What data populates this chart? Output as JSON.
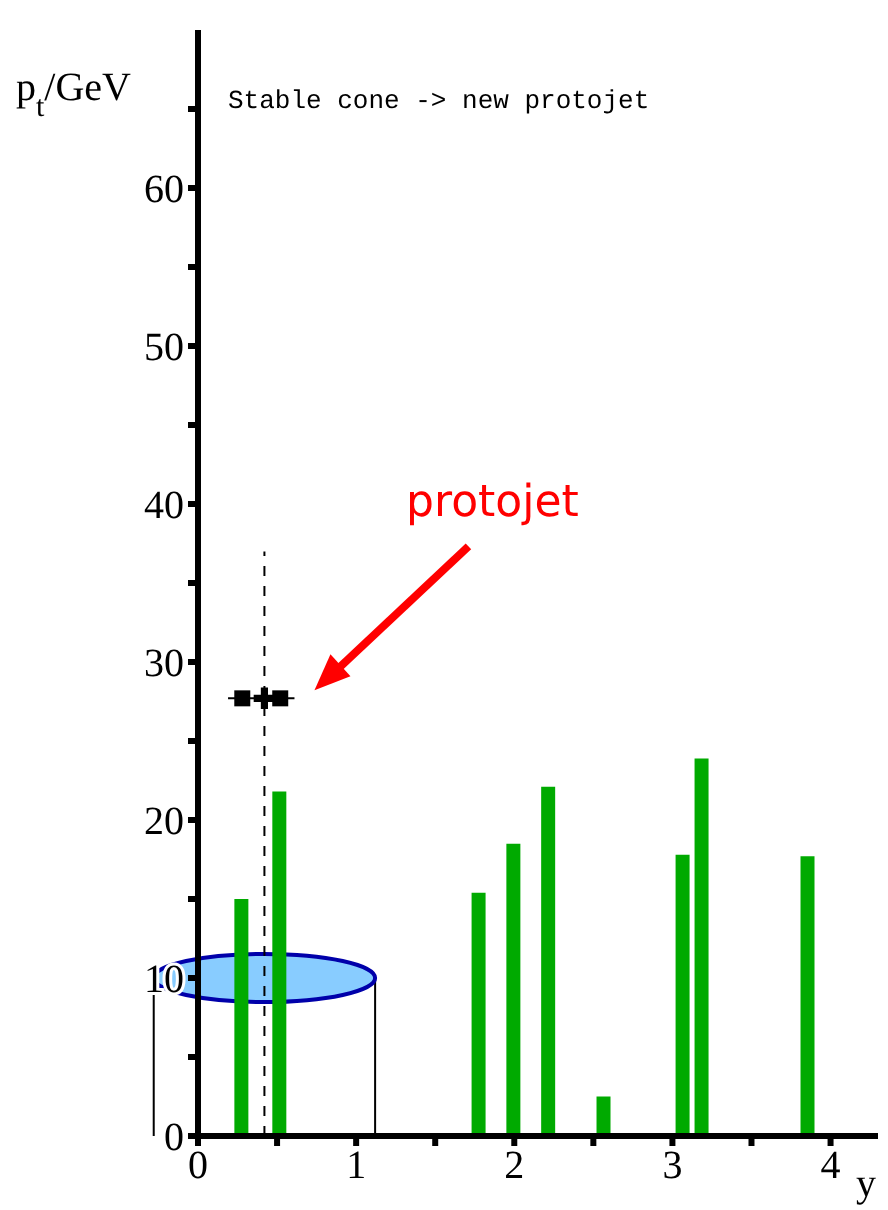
{
  "chart_data": {
    "type": "bar",
    "title": "Stable cone -> new protojet",
    "xlabel": "y",
    "ylabel": "p$_{t}$/GeV",
    "x": [
      0.28,
      0.52,
      1.78,
      2.0,
      2.22,
      2.57,
      3.07,
      3.19,
      3.86
    ],
    "series": [
      {
        "color": "#00aa00",
        "values": [
          15,
          21.8,
          15.4,
          18.5,
          22.1,
          2.5,
          17.8,
          23.9,
          17.7
        ]
      },
      {
        "type": "line",
        "x": [
          0.42,
          0.42
        ],
        "values": [
          0,
          37
        ],
        "color": "#000000",
        "line_style": "dashed",
        "marker": "none"
      },
      {
        "type": "scatter",
        "x": [
          0.42
        ],
        "values": [
          27.7
        ],
        "xerrors": [
          [
            0.19,
            0.61
          ]
        ],
        "color": "#000000",
        "marker": "cross"
      },
      {
        "type": "scatter",
        "x": [
          0.28,
          0.52
        ],
        "values": [
          27.7,
          27.7
        ],
        "color": "#000000",
        "marker": "square"
      }
    ],
    "annotations": [
      "protojet"
    ],
    "xlim": [
      0,
      4.3
    ],
    "ylim": [
      0,
      70
    ],
    "xticks": [
      0,
      {
        "value": 0.5,
        "label": null
      },
      1,
      {
        "value": 1.5,
        "label": null
      },
      2,
      {
        "value": 2.5,
        "label": null
      },
      3,
      {
        "value": 3.5,
        "label": null
      },
      4
    ],
    "yticks": [
      0,
      {
        "value": 5,
        "label": null
      },
      10,
      {
        "value": 15,
        "label": null
      },
      20,
      {
        "value": 25,
        "label": null
      },
      30,
      {
        "value": 35,
        "label": null
      },
      40,
      {
        "value": 45,
        "label": null
      },
      50,
      {
        "value": 55,
        "label": null
      },
      60,
      {
        "value": 65,
        "label": null
      }
    ],
    "grid": false,
    "legend": false
  }
}
